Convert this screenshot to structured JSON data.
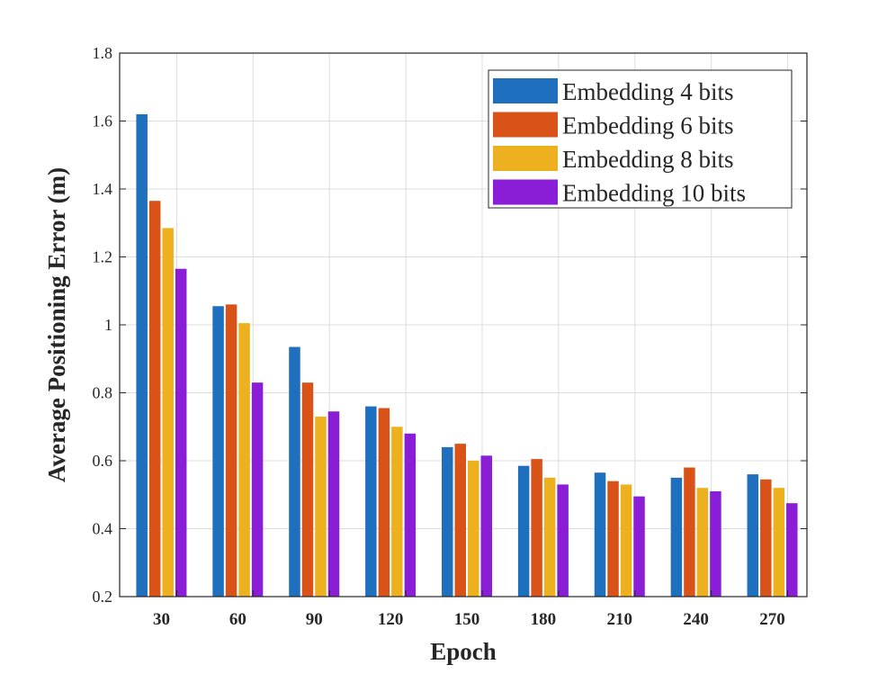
{
  "chart_data": {
    "type": "bar",
    "title": "",
    "xlabel": "Epoch",
    "ylabel": "Average  Positioning  Error  (m)",
    "categories": [
      "30",
      "60",
      "90",
      "120",
      "150",
      "180",
      "210",
      "240",
      "270"
    ],
    "ylim": [
      0.2,
      1.8
    ],
    "yticks": [
      0.2,
      0.4,
      0.6,
      0.8,
      1,
      1.2,
      1.4,
      1.6,
      1.8
    ],
    "ytick_labels": [
      "0.2",
      "0.4",
      "0.6",
      "0.8",
      "1",
      "1.2",
      "1.4",
      "1.6",
      "1.8"
    ],
    "grid": true,
    "legend_position": "top-right",
    "series": [
      {
        "name": "Embedding 4 bits",
        "color": "#1f6fbf",
        "values": [
          1.62,
          1.055,
          0.935,
          0.76,
          0.64,
          0.585,
          0.565,
          0.55,
          0.56
        ]
      },
      {
        "name": "Embedding 6 bits",
        "color": "#d95319",
        "values": [
          1.365,
          1.06,
          0.83,
          0.755,
          0.65,
          0.605,
          0.54,
          0.58,
          0.545
        ]
      },
      {
        "name": "Embedding 8 bits",
        "color": "#edb120",
        "values": [
          1.285,
          1.005,
          0.73,
          0.7,
          0.6,
          0.55,
          0.53,
          0.52,
          0.52
        ]
      },
      {
        "name": "Embedding 10 bits",
        "color": "#8a1ed6",
        "values": [
          1.165,
          0.83,
          0.745,
          0.68,
          0.615,
          0.53,
          0.495,
          0.51,
          0.475
        ]
      }
    ]
  }
}
